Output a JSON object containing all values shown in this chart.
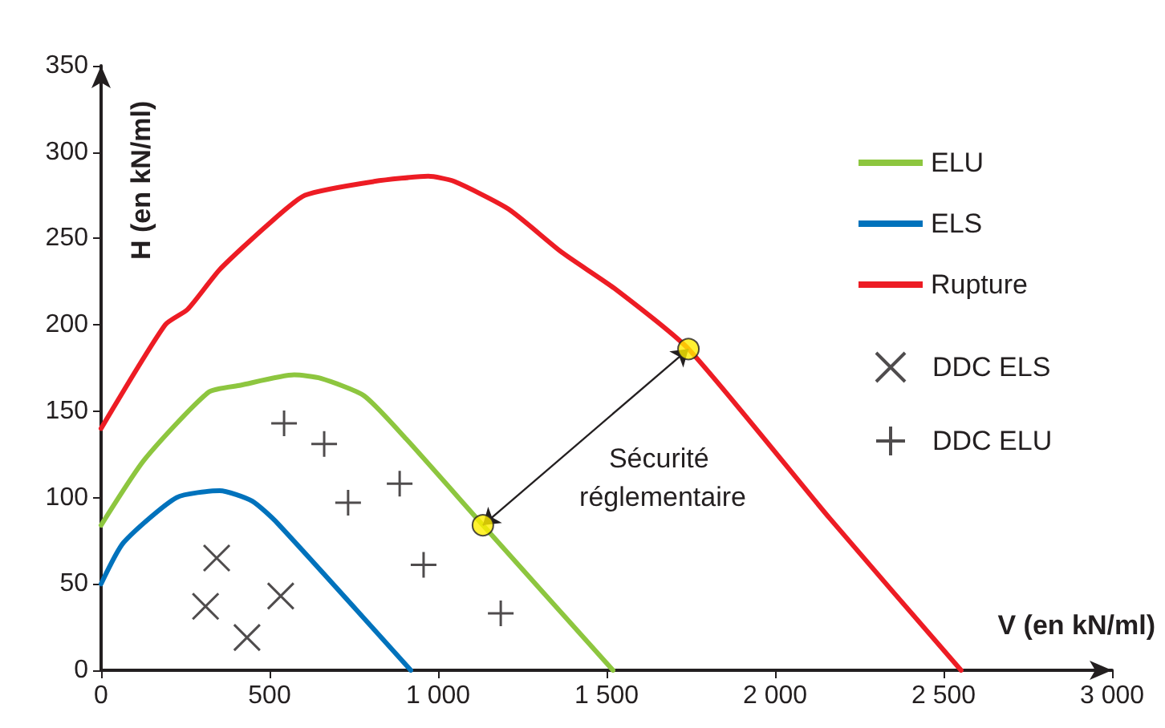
{
  "chart_data": {
    "type": "line",
    "xlabel": "V (en kN/ml)",
    "ylabel": "H (en kN/ml)",
    "annotations": [
      "Sécurité réglementaire"
    ],
    "xlim": [
      0,
      3000
    ],
    "xticks": [
      0,
      500,
      {
        "value": 1000,
        "label": "1 000"
      },
      {
        "value": 1500,
        "label": "1 500"
      },
      {
        "value": 2000,
        "label": "2 000"
      },
      {
        "value": 2500,
        "label": "2 500"
      },
      {
        "value": 3000,
        "label": "3 000"
      }
    ],
    "ylim": [
      0,
      350
    ],
    "yticks": [
      0,
      50,
      100,
      150,
      200,
      250,
      300,
      350
    ],
    "grid": false,
    "legend": "right",
    "line_style": "solid",
    "series": [
      {
        "name": "ELU",
        "marker": "none",
        "color": "#8dc63f",
        "x": [
          0,
          129,
          319,
          414,
          573,
          652,
          780,
          905,
          1133,
          1519
        ],
        "values": [
          84,
          122,
          161,
          165,
          171,
          169,
          159,
          134,
          84,
          0
        ]
      },
      {
        "name": "ELS",
        "marker": "none",
        "color": "#0072bc",
        "x": [
          0,
          67,
          224,
          352,
          448,
          524,
          919
        ],
        "values": [
          50,
          74,
          100,
          104,
          98,
          85,
          0
        ]
      },
      {
        "name": "Rupture",
        "marker": "none",
        "color": "#ed1c24",
        "x": [
          0,
          190,
          257,
          352,
          495,
          605,
          810,
          971,
          1048,
          1209,
          1367,
          1524,
          1743,
          2162,
          2552
        ],
        "values": [
          140,
          200,
          209,
          232,
          258,
          275,
          283,
          286,
          283,
          267,
          242,
          221,
          186,
          88,
          0
        ]
      },
      {
        "name": "DDC ELS",
        "type": "scatter",
        "marker": "cross",
        "color": "#231f20",
        "x": [
          343,
          310,
          433,
          533
        ],
        "values": [
          65,
          37,
          19,
          43
        ]
      },
      {
        "name": "DDC ELU",
        "type": "scatter",
        "marker": "plus",
        "color": "#231f20",
        "x": [
          543,
          662,
          733,
          886,
          957,
          1186
        ],
        "values": [
          143,
          131,
          97,
          108,
          61,
          33
        ]
      },
      {
        "type": "scatter",
        "marker": "circle",
        "color": "#ffed00",
        "x": [
          1133,
          1743
        ],
        "values": [
          84,
          186
        ]
      }
    ]
  }
}
